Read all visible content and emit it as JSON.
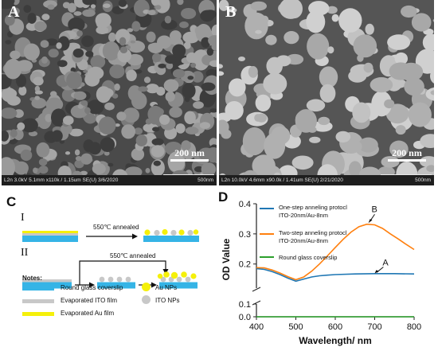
{
  "figure": {
    "panel_a": {
      "letter": "A",
      "scale_bar": "200 nm",
      "info_left": "L2n 3.0kV 5.1mm x110k / 1.15um SE(U) 3/6/2020",
      "info_right": "500nm"
    },
    "panel_b": {
      "letter": "B",
      "scale_bar": "200 nm",
      "info_left": "L2n 10.0kV 4.6mm x90.0k / 1.41um SE(U) 2/21/2020",
      "info_right": "500nm"
    },
    "panel_c": {
      "letter": "C",
      "step1_roman": "I",
      "step1_label": "550℃ annealed",
      "step2_roman": "II",
      "step2_label": "550℃ annealed",
      "notes_title": "Notes:",
      "legend": [
        {
          "label": "Round glass coverslip",
          "color": "#35b4e6"
        },
        {
          "label": "Evaporated ITO film",
          "color": "#c8c8c8"
        },
        {
          "label": "Evaporated Au film",
          "color": "#f5f00a"
        },
        {
          "label": "Au NPs",
          "color": "#f5f00a"
        },
        {
          "label": "ITO NPs",
          "color": "#c8c8c8"
        }
      ]
    },
    "panel_d": {
      "letter": "D"
    }
  },
  "chart_data": {
    "type": "line",
    "xlabel": "Wavelength/ nm",
    "ylabel": "OD Value",
    "xlim": [
      400,
      800
    ],
    "x_ticks": [
      "400",
      "500",
      "600",
      "700",
      "800"
    ],
    "y_ticks_upper": [
      "0.2",
      "0.3",
      "0.4"
    ],
    "y_ticks_lower": [
      "0.0",
      "0.1"
    ],
    "axis_break": true,
    "legend_position": "top-left",
    "series": [
      {
        "name": "One-step anneling protocl ITO-20nm/Au-8nm",
        "color": "#1f77b4",
        "annotation": "A",
        "x": [
          400,
          420,
          440,
          460,
          480,
          500,
          520,
          540,
          560,
          580,
          600,
          650,
          700,
          750,
          800
        ],
        "y": [
          0.185,
          0.182,
          0.175,
          0.165,
          0.153,
          0.143,
          0.15,
          0.157,
          0.161,
          0.163,
          0.165,
          0.167,
          0.168,
          0.168,
          0.167
        ]
      },
      {
        "name": "Two-step anneling protocl ITO-20nm/Au-8nm",
        "color": "#ff7f0e",
        "annotation": "B",
        "x": [
          400,
          420,
          440,
          460,
          480,
          500,
          520,
          540,
          560,
          580,
          600,
          620,
          640,
          660,
          680,
          700,
          720,
          740,
          760,
          780,
          800
        ],
        "y": [
          0.188,
          0.187,
          0.18,
          0.17,
          0.158,
          0.148,
          0.157,
          0.176,
          0.2,
          0.227,
          0.255,
          0.282,
          0.306,
          0.324,
          0.332,
          0.33,
          0.318,
          0.3,
          0.283,
          0.265,
          0.248
        ]
      },
      {
        "name": "Round glass coverslip",
        "color": "#2ca02c",
        "x": [
          400,
          500,
          600,
          700,
          800
        ],
        "y": [
          0.0,
          0.0,
          0.0,
          0.0,
          0.0
        ]
      }
    ]
  }
}
